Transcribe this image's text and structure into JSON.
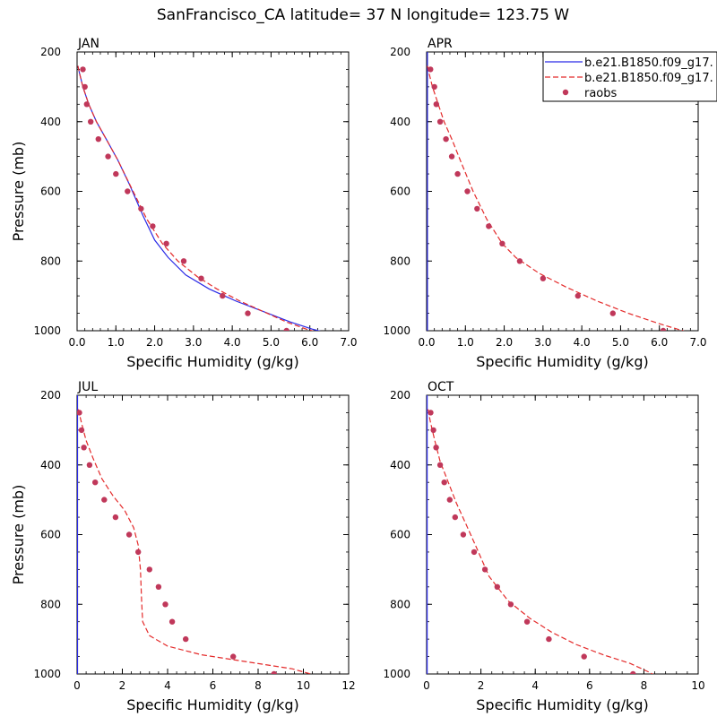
{
  "page": {
    "title": "SanFrancisco_CA  latitude= 37 N longitude= 123.75 W"
  },
  "legend": {
    "entries": [
      {
        "label": "b.e21.B1850.f09_g17.",
        "style": "solid",
        "color": "#2a2ae6"
      },
      {
        "label": "b.e21.B1850.f09_g17.",
        "style": "dashed",
        "color": "#e42b2b"
      },
      {
        "label": "raobs",
        "style": "dot",
        "color": "#c0385a"
      }
    ]
  },
  "colors": {
    "solid_series": "#2a2ae6",
    "dashed_series": "#e42b2b",
    "obs_points": "#c0385a"
  },
  "chart_data": [
    {
      "type": "line",
      "panel": "JAN",
      "title": "JAN",
      "xlabel": "Specific Humidity (g/kg)",
      "ylabel": "Pressure (mb)",
      "xlim": [
        0,
        7
      ],
      "ylim": [
        1000,
        200
      ],
      "y_inverted": true,
      "xticks": [
        "0.0",
        "1.0",
        "2.0",
        "3.0",
        "4.0",
        "5.0",
        "6.0",
        "7.0"
      ],
      "yticks": [
        "200",
        "400",
        "600",
        "800",
        "1000"
      ],
      "series": [
        {
          "name": "b.e21.B1850.f09_g17.",
          "style": "solid",
          "x": [
            0.02,
            0.06,
            0.15,
            0.3,
            0.5,
            0.75,
            1.05,
            1.35,
            1.7,
            2.0,
            2.35,
            2.8,
            3.4,
            4.1,
            4.8,
            5.5,
            6.05,
            6.4,
            6.65
          ],
          "y": [
            240,
            260,
            300,
            350,
            400,
            450,
            510,
            580,
            670,
            740,
            790,
            840,
            880,
            915,
            945,
            975,
            995,
            1005,
            1010
          ]
        },
        {
          "name": "b.e21.B1850.f09_g17.",
          "style": "dashed",
          "x": [
            0.02,
            0.06,
            0.15,
            0.3,
            0.5,
            0.75,
            1.05,
            1.4,
            1.8,
            2.2,
            2.6,
            3.1,
            3.6,
            4.2,
            4.8,
            5.4,
            5.9,
            6.3,
            6.5
          ],
          "y": [
            240,
            260,
            300,
            350,
            400,
            450,
            510,
            590,
            680,
            750,
            800,
            845,
            880,
            915,
            945,
            975,
            995,
            1008,
            1012
          ]
        }
      ],
      "points": {
        "name": "raobs",
        "x": [
          0.15,
          0.2,
          0.25,
          0.35,
          0.55,
          0.8,
          1.0,
          1.3,
          1.65,
          1.95,
          2.3,
          2.75,
          3.2,
          3.75,
          4.4,
          5.4
        ],
        "y": [
          250,
          300,
          350,
          400,
          450,
          500,
          550,
          600,
          650,
          700,
          750,
          800,
          850,
          900,
          950,
          1000
        ]
      }
    },
    {
      "type": "line",
      "panel": "APR",
      "title": "APR",
      "xlabel": "Specific Humidity (g/kg)",
      "ylabel": "",
      "xlim": [
        0,
        7
      ],
      "ylim": [
        1000,
        200
      ],
      "y_inverted": true,
      "xticks": [
        "0.0",
        "1.0",
        "2.0",
        "3.0",
        "4.0",
        "5.0",
        "6.0",
        "7.0"
      ],
      "yticks": [
        "200",
        "400",
        "600",
        "800",
        "1000"
      ],
      "series": [
        {
          "name": "b.e21.B1850.f09_g17.",
          "style": "solid",
          "x": [
            0.02,
            0.02
          ],
          "y": [
            200,
            1000
          ]
        },
        {
          "name": "b.e21.B1850.f09_g17.",
          "style": "dashed",
          "x": [
            0.02,
            0.06,
            0.15,
            0.3,
            0.45,
            0.65,
            0.9,
            1.2,
            1.55,
            1.95,
            2.3,
            2.9,
            3.6,
            4.4,
            5.2,
            6.0,
            6.6,
            6.9
          ],
          "y": [
            240,
            260,
            300,
            350,
            400,
            450,
            520,
            600,
            680,
            750,
            790,
            835,
            875,
            915,
            950,
            980,
            1000,
            1010
          ]
        }
      ],
      "points": {
        "name": "raobs",
        "x": [
          0.1,
          0.2,
          0.25,
          0.35,
          0.5,
          0.65,
          0.8,
          1.05,
          1.3,
          1.6,
          1.95,
          2.4,
          3.0,
          3.9,
          4.8,
          6.1
        ],
        "y": [
          250,
          300,
          350,
          400,
          450,
          500,
          550,
          600,
          650,
          700,
          750,
          800,
          850,
          900,
          950,
          1000
        ]
      }
    },
    {
      "type": "line",
      "panel": "JUL",
      "title": "JUL",
      "xlabel": "Specific Humidity (g/kg)",
      "ylabel": "Pressure (mb)",
      "xlim": [
        0,
        12
      ],
      "ylim": [
        1000,
        200
      ],
      "y_inverted": true,
      "xticks": [
        "0",
        "2",
        "4",
        "6",
        "8",
        "10",
        "12"
      ],
      "yticks": [
        "200",
        "400",
        "600",
        "800",
        "1000"
      ],
      "series": [
        {
          "name": "b.e21.B1850.f09_g17.",
          "style": "solid",
          "x": [
            0.02,
            0.02
          ],
          "y": [
            200,
            1000
          ]
        },
        {
          "name": "b.e21.B1850.f09_g17.",
          "style": "dashed",
          "x": [
            0.05,
            0.2,
            0.4,
            0.7,
            1.1,
            1.6,
            2.1,
            2.5,
            2.7,
            2.8,
            2.85,
            2.9,
            3.2,
            4.0,
            5.5,
            7.5,
            9.5,
            10.6
          ],
          "y": [
            240,
            280,
            330,
            380,
            440,
            490,
            530,
            580,
            630,
            700,
            790,
            850,
            890,
            920,
            945,
            965,
            985,
            1005
          ]
        }
      ],
      "points": {
        "name": "raobs",
        "x": [
          0.1,
          0.2,
          0.3,
          0.55,
          0.8,
          1.2,
          1.7,
          2.3,
          2.7,
          3.2,
          3.6,
          3.9,
          4.2,
          4.8,
          6.9,
          8.7
        ],
        "y": [
          250,
          300,
          350,
          400,
          450,
          500,
          550,
          600,
          650,
          700,
          750,
          800,
          850,
          900,
          950,
          1000
        ]
      }
    },
    {
      "type": "line",
      "panel": "OCT",
      "title": "OCT",
      "xlabel": "Specific Humidity (g/kg)",
      "ylabel": "",
      "xlim": [
        0,
        10
      ],
      "ylim": [
        1000,
        200
      ],
      "y_inverted": true,
      "xticks": [
        "0",
        "2",
        "4",
        "6",
        "8",
        "10"
      ],
      "yticks": [
        "200",
        "400",
        "600",
        "800",
        "1000"
      ],
      "series": [
        {
          "name": "b.e21.B1850.f09_g17.",
          "style": "solid",
          "x": [
            0.02,
            0.02
          ],
          "y": [
            200,
            1000
          ]
        },
        {
          "name": "b.e21.B1850.f09_g17.",
          "style": "dashed",
          "x": [
            0.05,
            0.15,
            0.3,
            0.5,
            0.8,
            1.1,
            1.45,
            1.85,
            2.3,
            3.0,
            3.8,
            4.6,
            5.5,
            6.5,
            7.5,
            8.2,
            8.5
          ],
          "y": [
            240,
            280,
            330,
            390,
            450,
            510,
            570,
            640,
            720,
            790,
            840,
            880,
            915,
            945,
            970,
            995,
            1008
          ]
        }
      ],
      "points": {
        "name": "raobs",
        "x": [
          0.15,
          0.25,
          0.35,
          0.5,
          0.65,
          0.85,
          1.05,
          1.35,
          1.75,
          2.15,
          2.6,
          3.1,
          3.7,
          4.5,
          5.8,
          7.6
        ],
        "y": [
          250,
          300,
          350,
          400,
          450,
          500,
          550,
          600,
          650,
          700,
          750,
          800,
          850,
          900,
          950,
          1000
        ]
      }
    }
  ]
}
